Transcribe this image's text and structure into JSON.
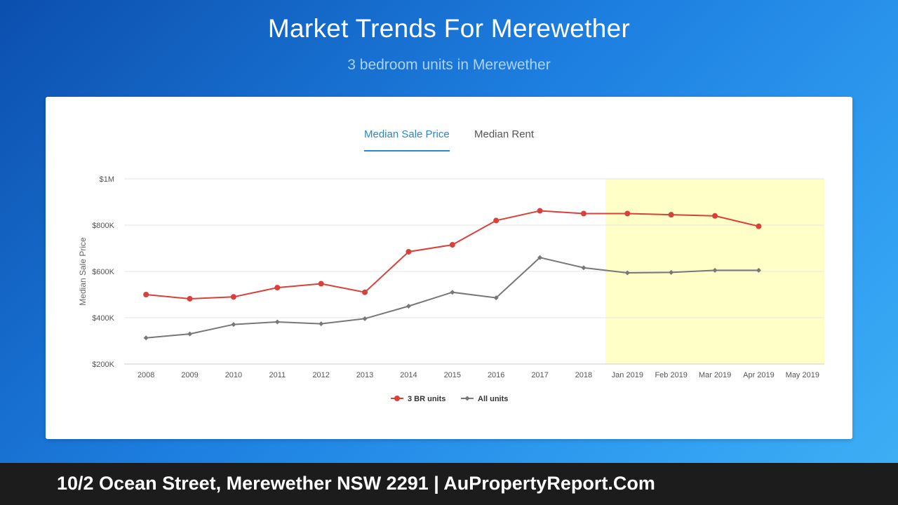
{
  "header": {
    "title": "Market Trends For Merewether",
    "subtitle": "3 bedroom units in Merewether"
  },
  "tabs": [
    {
      "label": "Median Sale Price",
      "active": true
    },
    {
      "label": "Median Rent",
      "active": false
    }
  ],
  "chart_data": {
    "type": "line",
    "title": "",
    "xlabel": "",
    "ylabel": "Median Sale Price",
    "ylim": [
      200000,
      1000000
    ],
    "yticks": [
      {
        "value": 200000,
        "label": "$200K"
      },
      {
        "value": 400000,
        "label": "$400K"
      },
      {
        "value": 600000,
        "label": "$600K"
      },
      {
        "value": 800000,
        "label": "$800K"
      },
      {
        "value": 1000000,
        "label": "$1M"
      }
    ],
    "categories": [
      "2008",
      "2009",
      "2010",
      "2011",
      "2012",
      "2013",
      "2014",
      "2015",
      "2016",
      "2017",
      "2018",
      "Jan 2019",
      "Feb 2019",
      "Mar 2019",
      "Apr 2019",
      "May 2019"
    ],
    "highlight_range": [
      "Jan 2019",
      "May 2019"
    ],
    "highlight_color": "#ffffc8",
    "grid": true,
    "legend_position": "bottom",
    "series": [
      {
        "name": "3 BR units",
        "color": "#d9403a",
        "marker": "circle",
        "values": [
          500000,
          482000,
          490000,
          530000,
          547000,
          510000,
          685000,
          715000,
          820000,
          862000,
          850000,
          850000,
          845000,
          840000,
          795000,
          null
        ]
      },
      {
        "name": "All units",
        "color": "#777777",
        "marker": "diamond",
        "values": [
          313000,
          330000,
          371000,
          382000,
          374000,
          396000,
          450000,
          510000,
          486000,
          660000,
          616000,
          594000,
          596000,
          605000,
          605000,
          null
        ]
      }
    ]
  },
  "footer": {
    "text": "10/2 Ocean Street, Merewether NSW 2291 | AuPropertyReport.Com"
  }
}
